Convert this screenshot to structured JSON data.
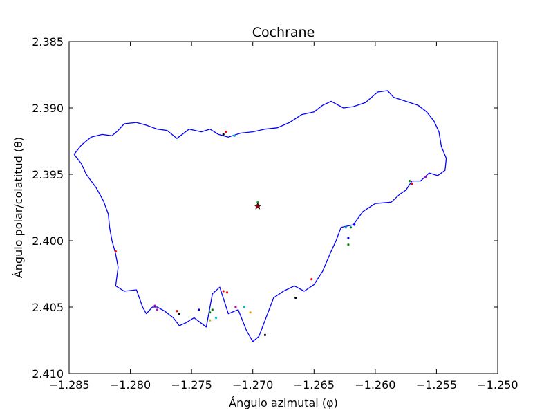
{
  "chart_data": {
    "type": "line",
    "title": "Cochrane",
    "xlabel": "Ángulo azimutal (φ)",
    "ylabel": "Ángulo polar/colatitud (θ)",
    "xlim": [
      -1.285,
      -1.25
    ],
    "ylim": [
      2.385,
      2.41
    ],
    "y_inverted": true,
    "grid": false,
    "xticks": [
      -1.285,
      -1.28,
      -1.275,
      -1.27,
      -1.265,
      -1.26,
      -1.255,
      -1.25
    ],
    "yticks": [
      2.385,
      2.39,
      2.395,
      2.4,
      2.405,
      2.41
    ],
    "xtick_labels": [
      "−1.285",
      "−1.280",
      "−1.275",
      "−1.270",
      "−1.265",
      "−1.260",
      "−1.255",
      "−1.250"
    ],
    "ytick_labels": [
      "2.385",
      "2.390",
      "2.395",
      "2.400",
      "2.405",
      "2.410"
    ],
    "outline": {
      "color": "#0000ff",
      "points": [
        [
          -1.2846,
          2.3935
        ],
        [
          -1.284,
          2.3928
        ],
        [
          -1.2832,
          2.3922
        ],
        [
          -1.2823,
          2.392
        ],
        [
          -1.2815,
          2.3921
        ],
        [
          -1.281,
          2.3917
        ],
        [
          -1.2805,
          2.3912
        ],
        [
          -1.2795,
          2.3911
        ],
        [
          -1.2787,
          2.3913
        ],
        [
          -1.2778,
          2.3916
        ],
        [
          -1.277,
          2.3917
        ],
        [
          -1.2762,
          2.3923
        ],
        [
          -1.2752,
          2.3916
        ],
        [
          -1.2742,
          2.3918
        ],
        [
          -1.2735,
          2.3916
        ],
        [
          -1.2728,
          2.392
        ],
        [
          -1.272,
          2.3922
        ],
        [
          -1.271,
          2.3919
        ],
        [
          -1.27,
          2.3918
        ],
        [
          -1.269,
          2.3916
        ],
        [
          -1.268,
          2.3915
        ],
        [
          -1.267,
          2.3911
        ],
        [
          -1.266,
          2.3905
        ],
        [
          -1.265,
          2.3903
        ],
        [
          -1.2643,
          2.3898
        ],
        [
          -1.2636,
          2.3895
        ],
        [
          -1.2626,
          2.39
        ],
        [
          -1.2618,
          2.3899
        ],
        [
          -1.2608,
          2.3896
        ],
        [
          -1.2598,
          2.3888
        ],
        [
          -1.259,
          2.3887
        ],
        [
          -1.2585,
          2.3892
        ],
        [
          -1.2575,
          2.3895
        ],
        [
          -1.2565,
          2.3898
        ],
        [
          -1.2558,
          2.3903
        ],
        [
          -1.2552,
          2.391
        ],
        [
          -1.2548,
          2.3918
        ],
        [
          -1.2546,
          2.3929
        ],
        [
          -1.2542,
          2.3938
        ],
        [
          -1.2543,
          2.3947
        ],
        [
          -1.2549,
          2.3951
        ],
        [
          -1.2556,
          2.3949
        ],
        [
          -1.2563,
          2.3955
        ],
        [
          -1.257,
          2.3955
        ],
        [
          -1.2575,
          2.3962
        ],
        [
          -1.258,
          2.3965
        ],
        [
          -1.2587,
          2.3971
        ],
        [
          -1.26,
          2.3972
        ],
        [
          -1.261,
          2.3978
        ],
        [
          -1.2618,
          2.3988
        ],
        [
          -1.2628,
          2.399
        ],
        [
          -1.2632,
          2.4
        ],
        [
          -1.2637,
          2.401
        ],
        [
          -1.2643,
          2.4023
        ],
        [
          -1.265,
          2.4033
        ],
        [
          -1.2658,
          2.4038
        ],
        [
          -1.2666,
          2.4034
        ],
        [
          -1.2675,
          2.4038
        ],
        [
          -1.2683,
          2.4043
        ],
        [
          -1.269,
          2.406
        ],
        [
          -1.2695,
          2.4072
        ],
        [
          -1.27,
          2.4076
        ],
        [
          -1.2705,
          2.4068
        ],
        [
          -1.2712,
          2.4052
        ],
        [
          -1.272,
          2.4055
        ],
        [
          -1.2727,
          2.4035
        ],
        [
          -1.2733,
          2.404
        ],
        [
          -1.2738,
          2.4065
        ],
        [
          -1.2748,
          2.4058
        ],
        [
          -1.2755,
          2.4062
        ],
        [
          -1.276,
          2.4064
        ],
        [
          -1.2765,
          2.4058
        ],
        [
          -1.2772,
          2.4053
        ],
        [
          -1.2778,
          2.405
        ],
        [
          -1.2782,
          2.405
        ],
        [
          -1.2787,
          2.4055
        ],
        [
          -1.279,
          2.405
        ],
        [
          -1.2795,
          2.4037
        ],
        [
          -1.2805,
          2.4038
        ],
        [
          -1.2812,
          2.4034
        ],
        [
          -1.281,
          2.402
        ],
        [
          -1.2812,
          2.401
        ],
        [
          -1.2815,
          2.4
        ],
        [
          -1.2817,
          2.399
        ],
        [
          -1.2818,
          2.398
        ],
        [
          -1.2822,
          2.397
        ],
        [
          -1.2828,
          2.396
        ],
        [
          -1.2836,
          2.395
        ],
        [
          -1.284,
          2.3942
        ],
        [
          -1.2846,
          2.3935
        ]
      ]
    },
    "markers": [
      {
        "x": -1.2696,
        "y": 2.3974,
        "shape": "star",
        "color": "#8b0000"
      },
      {
        "x": -1.2696,
        "y": 2.3972,
        "shape": "dot",
        "color": "#00aa00"
      }
    ],
    "scatter_dots": [
      {
        "x": -1.2812,
        "y": 2.4008,
        "color": "#ff0000"
      },
      {
        "x": -1.278,
        "y": 2.4049,
        "color": "#bf00bf"
      },
      {
        "x": -1.2778,
        "y": 2.4052,
        "color": "#bf00bf"
      },
      {
        "x": -1.2762,
        "y": 2.4053,
        "color": "#ff0000"
      },
      {
        "x": -1.276,
        "y": 2.4055,
        "color": "#000000"
      },
      {
        "x": -1.2744,
        "y": 2.4052,
        "color": "#0000ff"
      },
      {
        "x": -1.2735,
        "y": 2.4054,
        "color": "#008000"
      },
      {
        "x": -1.2733,
        "y": 2.4052,
        "color": "#008000"
      },
      {
        "x": -1.273,
        "y": 2.4058,
        "color": "#00bfbf"
      },
      {
        "x": -1.2735,
        "y": 2.406,
        "color": "#bfbf00"
      },
      {
        "x": -1.2724,
        "y": 2.4038,
        "color": "#ff0000"
      },
      {
        "x": -1.2721,
        "y": 2.4039,
        "color": "#ff0000"
      },
      {
        "x": -1.2714,
        "y": 2.405,
        "color": "#bf00bf"
      },
      {
        "x": -1.2707,
        "y": 2.405,
        "color": "#00bfbf"
      },
      {
        "x": -1.2702,
        "y": 2.4054,
        "color": "#ffa500"
      },
      {
        "x": -1.269,
        "y": 2.4071,
        "color": "#000000"
      },
      {
        "x": -1.2665,
        "y": 2.4043,
        "color": "#000000"
      },
      {
        "x": -1.2652,
        "y": 2.4029,
        "color": "#ff0000"
      },
      {
        "x": -1.2624,
        "y": 2.399,
        "color": "#00bfbf"
      },
      {
        "x": -1.262,
        "y": 2.399,
        "color": "#008000"
      },
      {
        "x": -1.2617,
        "y": 2.3988,
        "color": "#0000ff"
      },
      {
        "x": -1.2622,
        "y": 2.4003,
        "color": "#008000"
      },
      {
        "x": -1.2622,
        "y": 2.3998,
        "color": "#0000ff"
      },
      {
        "x": -1.2572,
        "y": 2.3955,
        "color": "#008000"
      },
      {
        "x": -1.257,
        "y": 2.3957,
        "color": "#ff0000"
      },
      {
        "x": -1.2559,
        "y": 2.3952,
        "color": "#bf00bf"
      },
      {
        "x": -1.2724,
        "y": 2.392,
        "color": "#000000"
      },
      {
        "x": -1.2722,
        "y": 2.3918,
        "color": "#ff0000"
      },
      {
        "x": -1.2715,
        "y": 2.3921,
        "color": "#00bfbf"
      }
    ]
  }
}
